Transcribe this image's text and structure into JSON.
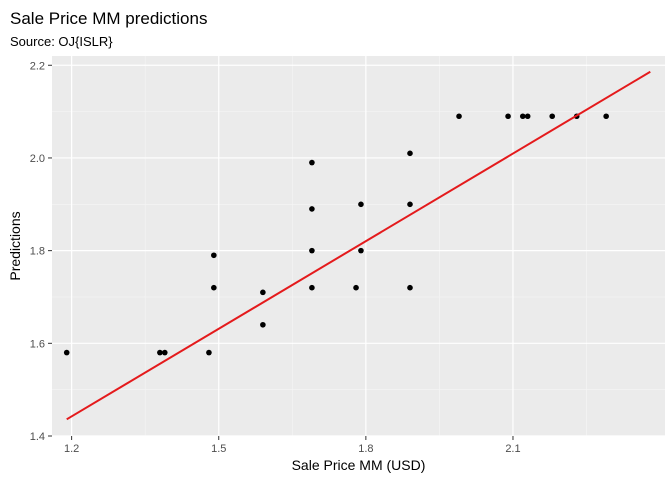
{
  "chart_data": {
    "type": "scatter",
    "title": "Sale Price MM predictions",
    "subtitle": "Source: OJ{ISLR}",
    "xlabel": "Sale Price MM (USD)",
    "ylabel": "Predictions",
    "xlim": [
      1.16,
      2.41
    ],
    "ylim": [
      1.4,
      2.22
    ],
    "xticks": [
      1.2,
      1.5,
      1.8,
      2.1
    ],
    "xtick_labels": [
      "1.2",
      "1.5",
      "1.8",
      "2.1"
    ],
    "yticks": [
      1.4,
      1.6,
      1.8,
      2.0,
      2.2
    ],
    "ytick_labels": [
      "1.4",
      "1.6",
      "1.8",
      "2.0",
      "2.2"
    ],
    "grid": true,
    "points": [
      {
        "x": 1.19,
        "y": 1.58
      },
      {
        "x": 1.38,
        "y": 1.58
      },
      {
        "x": 1.39,
        "y": 1.58
      },
      {
        "x": 1.48,
        "y": 1.58
      },
      {
        "x": 1.49,
        "y": 1.79
      },
      {
        "x": 1.49,
        "y": 1.72
      },
      {
        "x": 1.59,
        "y": 1.71
      },
      {
        "x": 1.59,
        "y": 1.64
      },
      {
        "x": 1.69,
        "y": 1.99
      },
      {
        "x": 1.69,
        "y": 1.89
      },
      {
        "x": 1.69,
        "y": 1.8
      },
      {
        "x": 1.69,
        "y": 1.72
      },
      {
        "x": 1.78,
        "y": 1.72
      },
      {
        "x": 1.79,
        "y": 1.9
      },
      {
        "x": 1.79,
        "y": 1.8
      },
      {
        "x": 1.89,
        "y": 2.01
      },
      {
        "x": 1.89,
        "y": 1.9
      },
      {
        "x": 1.89,
        "y": 1.72
      },
      {
        "x": 1.99,
        "y": 2.09
      },
      {
        "x": 2.09,
        "y": 2.09
      },
      {
        "x": 2.12,
        "y": 2.09
      },
      {
        "x": 2.13,
        "y": 2.09
      },
      {
        "x": 2.18,
        "y": 2.09
      },
      {
        "x": 2.23,
        "y": 2.09
      },
      {
        "x": 2.29,
        "y": 2.09
      }
    ],
    "fit_line": {
      "x": [
        1.19,
        2.38
      ],
      "y": [
        1.436,
        2.186
      ]
    },
    "colors": {
      "points": "#000000",
      "fit_line": "#e41a1c",
      "panel": "#ebebeb",
      "grid_major": "#ffffff",
      "grid_minor": "#f5f5f5"
    }
  }
}
